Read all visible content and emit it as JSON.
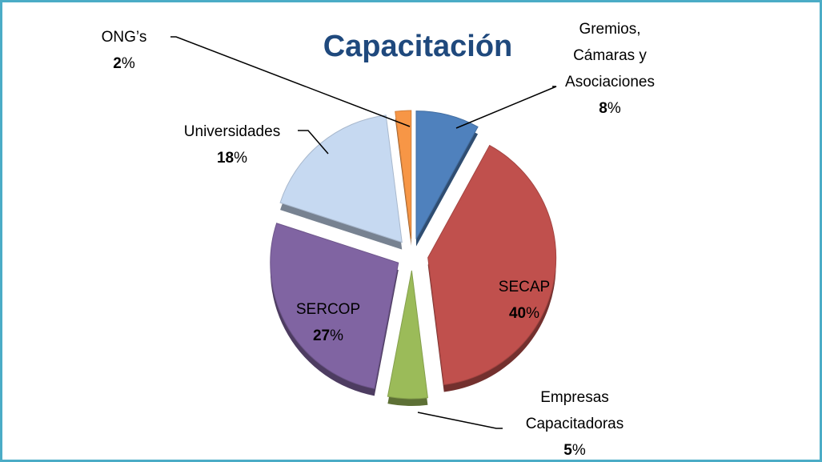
{
  "chart_data": {
    "type": "pie",
    "title": "Capacitación",
    "categories": [
      [
        "Gremios,",
        "Cámaras y",
        "Asociaciones"
      ],
      [
        "SECAP"
      ],
      [
        "Empresas",
        "Capacitadoras"
      ],
      [
        "SERCOP"
      ],
      [
        "Universidades"
      ],
      [
        "ONG’s"
      ]
    ],
    "values": [
      8,
      40,
      5,
      27,
      18,
      2
    ],
    "unit": "%",
    "colors": [
      "#4f81bd",
      "#c0504d",
      "#9bbb59",
      "#8064a2",
      "#c6d9f1",
      "#f79646"
    ]
  }
}
